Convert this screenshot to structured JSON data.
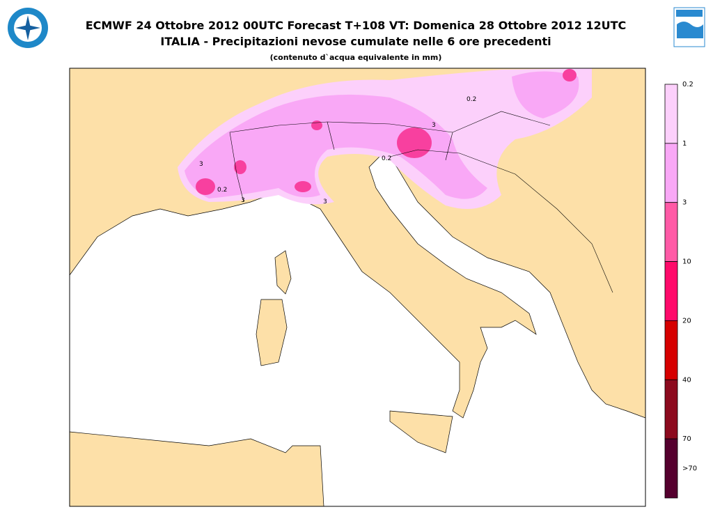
{
  "header": {
    "title": "ECMWF 24 Ottobre 2012 00UTC Forecast T+108 VT: Domenica 28 Ottobre 2012 12UTC",
    "subtitle": "ITALIA - Precipitazioni nevose cumulate nelle 6 ore precedenti",
    "note": "(contenuto d`acqua equivalente in mm)"
  },
  "legend": {
    "labels": [
      "0.2",
      "1",
      "3",
      "10",
      "20",
      "40",
      "70",
      ">70"
    ],
    "colors": [
      "#fcd0fb",
      "#f9a8f6",
      "#ff5aa6",
      "#ff0a6a",
      "#d60000",
      "#8c0a1e",
      "#55002e"
    ]
  },
  "map": {
    "contour_labels": [
      "3",
      "0.2",
      "3",
      "3",
      "0.2",
      "3",
      "0.2"
    ]
  }
}
